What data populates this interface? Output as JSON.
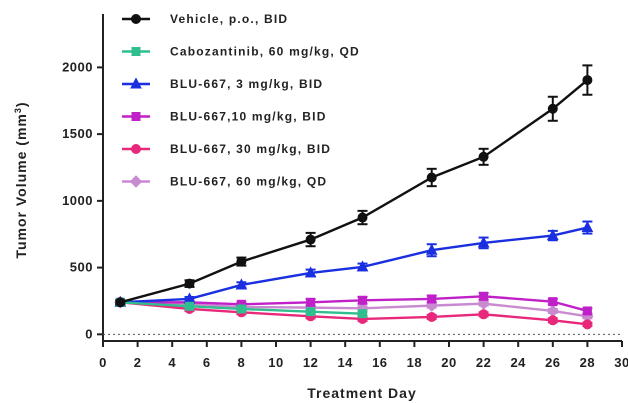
{
  "chart_data": {
    "type": "line",
    "xlabel": "Treatment Day",
    "ylabel": "Tumor Volume (mm³)",
    "ylabel_parts": {
      "main": "Tumor Volume (mm",
      "sup": "3",
      "close": ")"
    },
    "xlim": [
      0,
      30
    ],
    "ylim": [
      -50,
      2400
    ],
    "x_ticks": [
      0,
      2,
      4,
      6,
      8,
      10,
      12,
      14,
      16,
      18,
      20,
      22,
      24,
      26,
      28,
      30
    ],
    "y_ticks": [
      0,
      500,
      1000,
      1500,
      2000
    ],
    "baseline_dotted": true,
    "grid": false,
    "legend_position": "top-left",
    "series": [
      {
        "name": "Vehicle, p.o., BID",
        "color": "#111111",
        "marker": "circle",
        "x": [
          1,
          5,
          8,
          12,
          15,
          19,
          22,
          26,
          28
        ],
        "y": [
          240,
          380,
          545,
          710,
          875,
          1175,
          1330,
          1690,
          1905
        ],
        "err": [
          15,
          25,
          30,
          50,
          50,
          65,
          60,
          90,
          110
        ]
      },
      {
        "name": "Cabozantinib, 60 mg/kg, QD",
        "color": "#2fbf8f",
        "marker": "square",
        "x": [
          1,
          5,
          8,
          12,
          15
        ],
        "y": [
          240,
          210,
          190,
          170,
          155
        ],
        "err": [
          12,
          12,
          12,
          12,
          12
        ]
      },
      {
        "name": "BLU-667, 3 mg/kg, BID",
        "color": "#1a2fe0",
        "marker": "triangle",
        "x": [
          1,
          5,
          8,
          12,
          15,
          19,
          22,
          26,
          28
        ],
        "y": [
          240,
          265,
          370,
          460,
          505,
          630,
          685,
          740,
          800
        ],
        "err": [
          12,
          15,
          20,
          25,
          25,
          45,
          40,
          35,
          45
        ]
      },
      {
        "name": "BLU-667,10 mg/kg, BID",
        "color": "#c020c8",
        "marker": "square",
        "x": [
          1,
          5,
          8,
          12,
          15,
          19,
          22,
          26,
          28
        ],
        "y": [
          240,
          240,
          225,
          240,
          255,
          265,
          285,
          245,
          175
        ],
        "err": [
          12,
          15,
          15,
          25,
          25,
          25,
          25,
          20,
          20
        ]
      },
      {
        "name": "BLU-667, 30 mg/kg, BID",
        "color": "#e8287a",
        "marker": "circle",
        "x": [
          1,
          5,
          8,
          12,
          15,
          19,
          22,
          26,
          28
        ],
        "y": [
          240,
          190,
          165,
          135,
          115,
          130,
          150,
          105,
          75
        ],
        "err": [
          12,
          15,
          15,
          15,
          15,
          15,
          15,
          15,
          12
        ]
      },
      {
        "name": "BLU-667, 60 mg/kg, QD",
        "color": "#c98bd0",
        "marker": "diamond",
        "x": [
          1,
          5,
          8,
          12,
          15,
          19,
          22,
          26,
          28
        ],
        "y": [
          240,
          225,
          205,
          200,
          195,
          215,
          230,
          175,
          135
        ],
        "err": [
          12,
          15,
          15,
          15,
          15,
          15,
          15,
          15,
          15
        ]
      }
    ]
  }
}
